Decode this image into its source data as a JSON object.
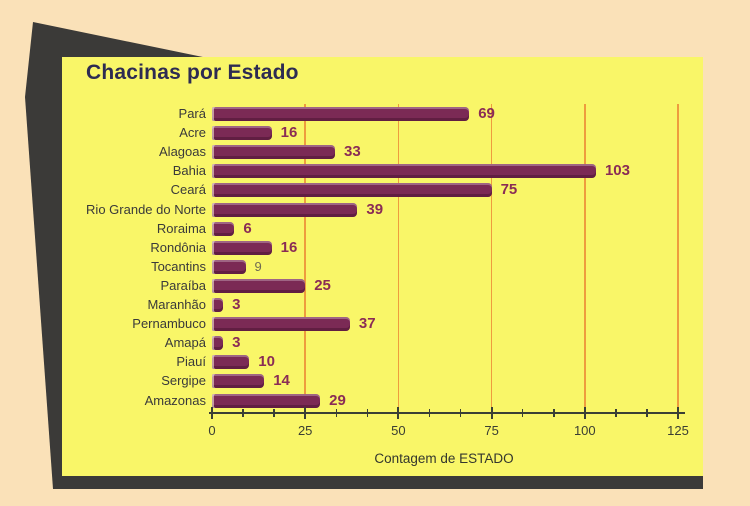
{
  "frame": {
    "background_color": "#FAE1B8",
    "shadow_color": "#3B3A38",
    "panel_color": "#F9F668"
  },
  "chart_data": {
    "type": "bar",
    "orientation": "horizontal",
    "title": "Chacinas por Estado",
    "xlabel": "Contagem de ESTADO",
    "ylabel": "",
    "categories": [
      "Pará",
      "Acre",
      "Alagoas",
      "Bahia",
      "Ceará",
      "Rio Grande do Norte",
      "Roraima",
      "Rondônia",
      "Tocantins",
      "Paraíba",
      "Maranhão",
      "Pernambuco",
      "Amapá",
      "Piauí",
      "Sergipe",
      "Amazonas"
    ],
    "values": [
      69,
      16,
      33,
      103,
      75,
      39,
      6,
      16,
      9,
      25,
      3,
      37,
      3,
      10,
      14,
      29
    ],
    "xlim": [
      0,
      125
    ],
    "xticks": [
      0,
      25,
      50,
      75,
      100,
      125
    ],
    "minor_ticks_between_majors": 2,
    "grid": "vertical-major-only",
    "legend": "none",
    "value_labels": "shown-at-bar-end",
    "muted_value_categories": [
      "Tocantins"
    ],
    "colors": {
      "bar": "#7B2A55",
      "value_label": "#8A2C55",
      "muted_value_label": "#6F6B52",
      "gridline": "#EE9C3E",
      "axis": "#3A3F35",
      "title": "#2D2B52",
      "category_label": "#3A3A3A",
      "tick_label": "#3B3E33",
      "xlabel": "#33362E"
    }
  }
}
